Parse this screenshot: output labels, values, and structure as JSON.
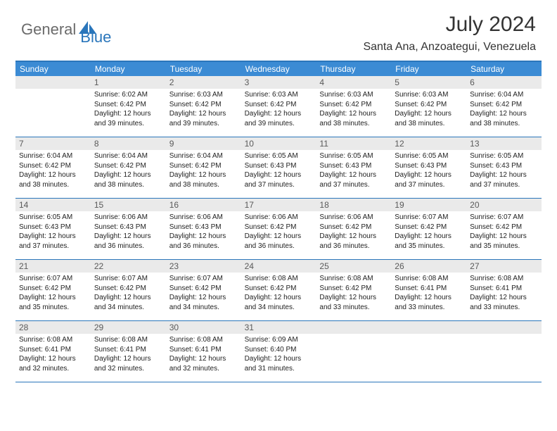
{
  "brand": {
    "general": "General",
    "blue": "Blue"
  },
  "title": "July 2024",
  "location": "Santa Ana, Anzoategui, Venezuela",
  "colors": {
    "header_bar": "#3b8bd4",
    "rule": "#2a76bb",
    "daynum_bg": "#eaeaea",
    "text": "#222222",
    "title_text": "#333333",
    "logo_gray": "#6b6b6b",
    "logo_blue": "#2a76bb"
  },
  "weekdays": [
    "Sunday",
    "Monday",
    "Tuesday",
    "Wednesday",
    "Thursday",
    "Friday",
    "Saturday"
  ],
  "weeks": [
    [
      {
        "n": "",
        "sr": "",
        "ss": "",
        "dl": ""
      },
      {
        "n": "1",
        "sr": "6:02 AM",
        "ss": "6:42 PM",
        "dl": "12 hours and 39 minutes."
      },
      {
        "n": "2",
        "sr": "6:03 AM",
        "ss": "6:42 PM",
        "dl": "12 hours and 39 minutes."
      },
      {
        "n": "3",
        "sr": "6:03 AM",
        "ss": "6:42 PM",
        "dl": "12 hours and 39 minutes."
      },
      {
        "n": "4",
        "sr": "6:03 AM",
        "ss": "6:42 PM",
        "dl": "12 hours and 38 minutes."
      },
      {
        "n": "5",
        "sr": "6:03 AM",
        "ss": "6:42 PM",
        "dl": "12 hours and 38 minutes."
      },
      {
        "n": "6",
        "sr": "6:04 AM",
        "ss": "6:42 PM",
        "dl": "12 hours and 38 minutes."
      }
    ],
    [
      {
        "n": "7",
        "sr": "6:04 AM",
        "ss": "6:42 PM",
        "dl": "12 hours and 38 minutes."
      },
      {
        "n": "8",
        "sr": "6:04 AM",
        "ss": "6:42 PM",
        "dl": "12 hours and 38 minutes."
      },
      {
        "n": "9",
        "sr": "6:04 AM",
        "ss": "6:42 PM",
        "dl": "12 hours and 38 minutes."
      },
      {
        "n": "10",
        "sr": "6:05 AM",
        "ss": "6:43 PM",
        "dl": "12 hours and 37 minutes."
      },
      {
        "n": "11",
        "sr": "6:05 AM",
        "ss": "6:43 PM",
        "dl": "12 hours and 37 minutes."
      },
      {
        "n": "12",
        "sr": "6:05 AM",
        "ss": "6:43 PM",
        "dl": "12 hours and 37 minutes."
      },
      {
        "n": "13",
        "sr": "6:05 AM",
        "ss": "6:43 PM",
        "dl": "12 hours and 37 minutes."
      }
    ],
    [
      {
        "n": "14",
        "sr": "6:05 AM",
        "ss": "6:43 PM",
        "dl": "12 hours and 37 minutes."
      },
      {
        "n": "15",
        "sr": "6:06 AM",
        "ss": "6:43 PM",
        "dl": "12 hours and 36 minutes."
      },
      {
        "n": "16",
        "sr": "6:06 AM",
        "ss": "6:43 PM",
        "dl": "12 hours and 36 minutes."
      },
      {
        "n": "17",
        "sr": "6:06 AM",
        "ss": "6:42 PM",
        "dl": "12 hours and 36 minutes."
      },
      {
        "n": "18",
        "sr": "6:06 AM",
        "ss": "6:42 PM",
        "dl": "12 hours and 36 minutes."
      },
      {
        "n": "19",
        "sr": "6:07 AM",
        "ss": "6:42 PM",
        "dl": "12 hours and 35 minutes."
      },
      {
        "n": "20",
        "sr": "6:07 AM",
        "ss": "6:42 PM",
        "dl": "12 hours and 35 minutes."
      }
    ],
    [
      {
        "n": "21",
        "sr": "6:07 AM",
        "ss": "6:42 PM",
        "dl": "12 hours and 35 minutes."
      },
      {
        "n": "22",
        "sr": "6:07 AM",
        "ss": "6:42 PM",
        "dl": "12 hours and 34 minutes."
      },
      {
        "n": "23",
        "sr": "6:07 AM",
        "ss": "6:42 PM",
        "dl": "12 hours and 34 minutes."
      },
      {
        "n": "24",
        "sr": "6:08 AM",
        "ss": "6:42 PM",
        "dl": "12 hours and 34 minutes."
      },
      {
        "n": "25",
        "sr": "6:08 AM",
        "ss": "6:42 PM",
        "dl": "12 hours and 33 minutes."
      },
      {
        "n": "26",
        "sr": "6:08 AM",
        "ss": "6:41 PM",
        "dl": "12 hours and 33 minutes."
      },
      {
        "n": "27",
        "sr": "6:08 AM",
        "ss": "6:41 PM",
        "dl": "12 hours and 33 minutes."
      }
    ],
    [
      {
        "n": "28",
        "sr": "6:08 AM",
        "ss": "6:41 PM",
        "dl": "12 hours and 32 minutes."
      },
      {
        "n": "29",
        "sr": "6:08 AM",
        "ss": "6:41 PM",
        "dl": "12 hours and 32 minutes."
      },
      {
        "n": "30",
        "sr": "6:08 AM",
        "ss": "6:41 PM",
        "dl": "12 hours and 32 minutes."
      },
      {
        "n": "31",
        "sr": "6:09 AM",
        "ss": "6:40 PM",
        "dl": "12 hours and 31 minutes."
      },
      {
        "n": "",
        "sr": "",
        "ss": "",
        "dl": ""
      },
      {
        "n": "",
        "sr": "",
        "ss": "",
        "dl": ""
      },
      {
        "n": "",
        "sr": "",
        "ss": "",
        "dl": ""
      }
    ]
  ],
  "labels": {
    "sunrise": "Sunrise:",
    "sunset": "Sunset:",
    "daylight": "Daylight:"
  }
}
